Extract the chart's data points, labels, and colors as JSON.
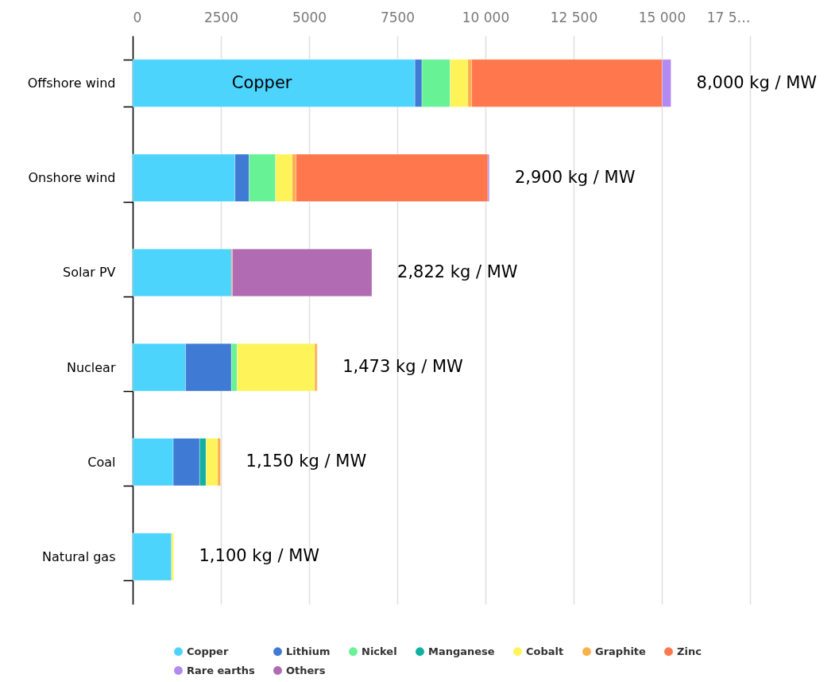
{
  "chart_data": {
    "type": "bar",
    "orientation": "horizontal",
    "stacked": true,
    "categories": [
      "Offshore wind",
      "Onshore wind",
      "Solar PV",
      "Nuclear",
      "Coal",
      "Natural gas"
    ],
    "series": [
      {
        "name": "Copper",
        "color": "#4dd4fd",
        "values": [
          8000,
          2900,
          2800,
          1500,
          1150,
          1100
        ]
      },
      {
        "name": "Lithium",
        "color": "#3f7bd4",
        "values": [
          200,
          400,
          null,
          1300,
          750,
          null
        ]
      },
      {
        "name": "Nickel",
        "color": "#67f296",
        "values": [
          800,
          750,
          null,
          160,
          null,
          null
        ]
      },
      {
        "name": "Manganese",
        "color": "#12b0a0",
        "values": [
          null,
          null,
          null,
          null,
          180,
          null
        ]
      },
      {
        "name": "Cobalt",
        "color": "#fff35a",
        "values": [
          500,
          470,
          null,
          2200,
          330,
          60
        ]
      },
      {
        "name": "Graphite",
        "color": "#fdb045",
        "values": [
          110,
          110,
          null,
          70,
          80,
          null
        ]
      },
      {
        "name": "Zinc",
        "color": "#ff774d",
        "values": [
          5400,
          5440,
          30,
          null,
          null,
          null
        ]
      },
      {
        "name": "Rare earths",
        "color": "#b28af0",
        "values": [
          250,
          40,
          null,
          null,
          null,
          null
        ]
      },
      {
        "name": "Others",
        "color": "#b06bb3",
        "values": [
          null,
          null,
          3950,
          null,
          null,
          null
        ]
      }
    ],
    "xlim": [
      0,
      17500
    ],
    "xticks": [
      0,
      2500,
      5000,
      7500,
      {
        "value": 10000,
        "label": "10 000"
      },
      {
        "value": 12500,
        "label": "12 500"
      },
      {
        "value": 15000,
        "label": "15 000"
      },
      {
        "value": 17500,
        "label": "17 5…"
      }
    ],
    "grid": "x",
    "legend": "bottom",
    "annotations": [
      "Copper",
      "8,000 kg / MW",
      "2,900 kg / MW",
      "2,822 kg / MW",
      "1,473 kg / MW",
      "1,150 kg / MW",
      "1,100 kg / MW"
    ]
  }
}
